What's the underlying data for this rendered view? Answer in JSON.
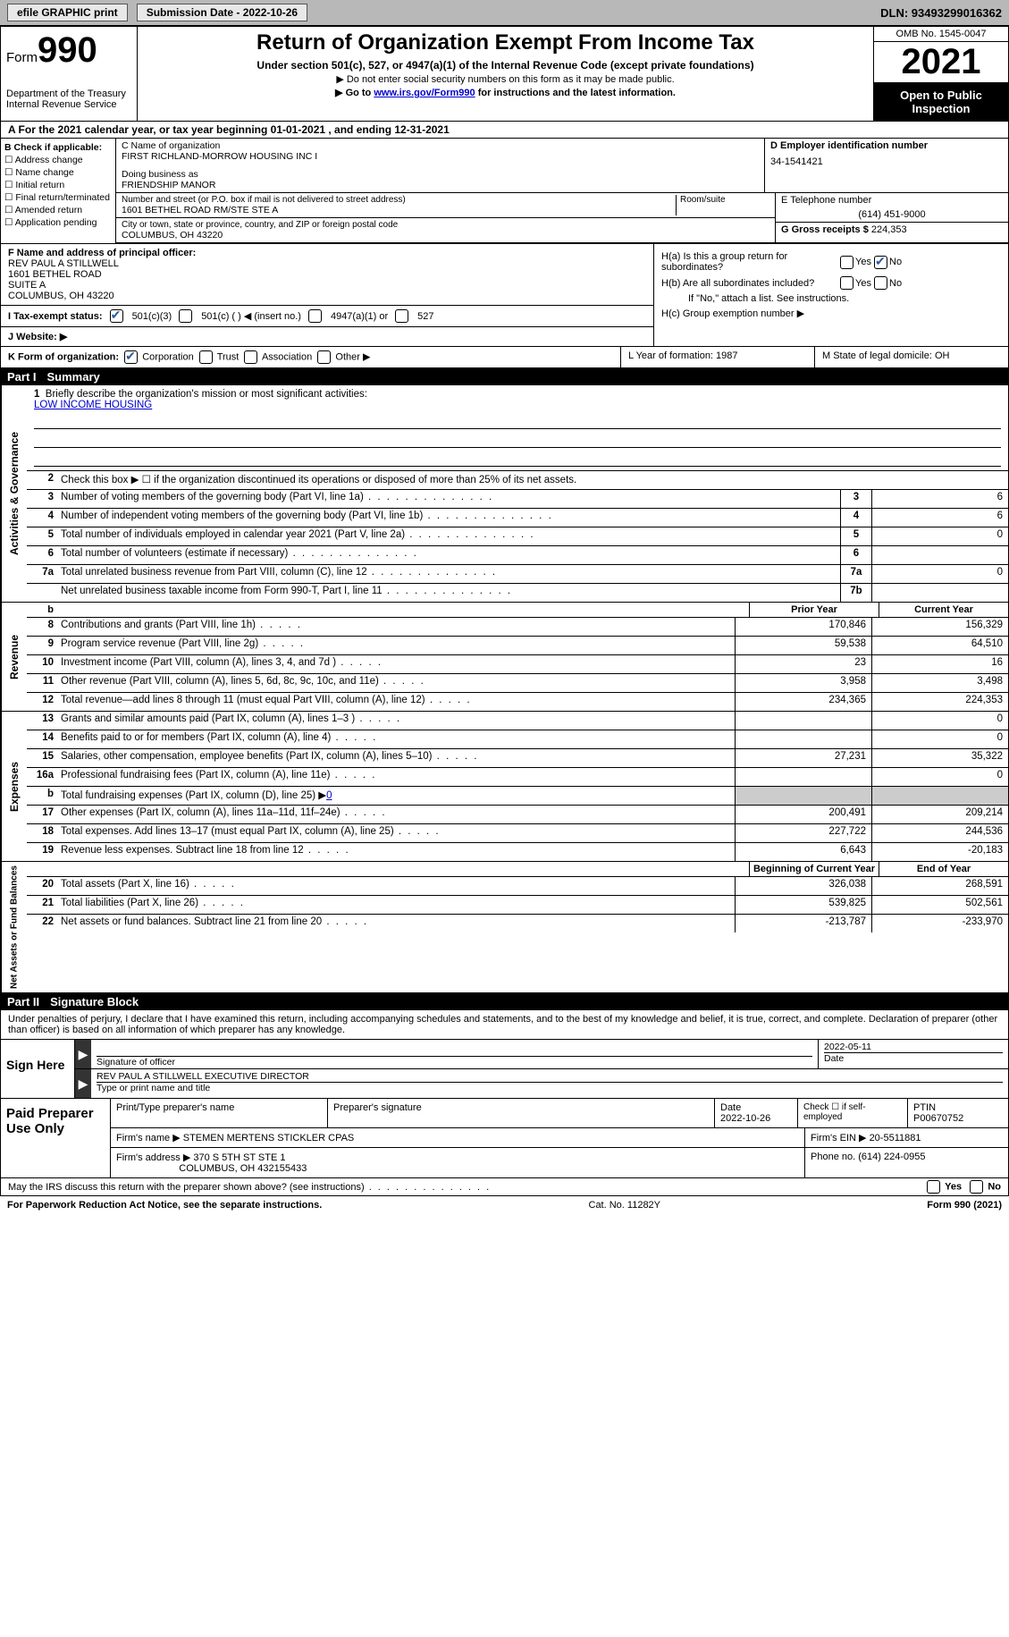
{
  "topbar": {
    "efile": "efile GRAPHIC print",
    "submission": "Submission Date - 2022-10-26",
    "dln": "DLN: 93493299016362"
  },
  "header": {
    "form_prefix": "Form",
    "form_num": "990",
    "dept": "Department of the Treasury",
    "irs": "Internal Revenue Service",
    "title": "Return of Organization Exempt From Income Tax",
    "sub": "Under section 501(c), 527, or 4947(a)(1) of the Internal Revenue Code (except private foundations)",
    "note1": "▶ Do not enter social security numbers on this form as it may be made public.",
    "note2_pre": "▶ Go to ",
    "note2_link": "www.irs.gov/Form990",
    "note2_post": " for instructions and the latest information.",
    "omb": "OMB No. 1545-0047",
    "year": "2021",
    "open": "Open to Public Inspection"
  },
  "row_a": "A For the 2021 calendar year, or tax year beginning 01-01-2021    , and ending 12-31-2021",
  "col_b": {
    "title": "B Check if applicable:",
    "opts": [
      "Address change",
      "Name change",
      "Initial return",
      "Final return/terminated",
      "Amended return",
      "Application pending"
    ]
  },
  "col_c": {
    "label_name": "C Name of organization",
    "name": "FIRST RICHLAND-MORROW HOUSING INC I",
    "dba_label": "Doing business as",
    "dba": "FRIENDSHIP MANOR",
    "street_label": "Number and street (or P.O. box if mail is not delivered to street address)",
    "room_label": "Room/suite",
    "street": "1601 BETHEL ROAD RM/STE STE A",
    "city_label": "City or town, state or province, country, and ZIP or foreign postal code",
    "city": "COLUMBUS, OH  43220"
  },
  "col_d": {
    "label": "D Employer identification number",
    "value": "34-1541421"
  },
  "col_e": {
    "label": "E Telephone number",
    "value": "(614) 451-9000"
  },
  "col_g": {
    "label": "G Gross receipts $",
    "value": "224,353"
  },
  "col_f": {
    "label": "F  Name and address of principal officer:",
    "l1": "REV PAUL A STILLWELL",
    "l2": "1601 BETHEL ROAD",
    "l3": "SUITE A",
    "l4": "COLUMBUS, OH  43220"
  },
  "col_h": {
    "a": "H(a)  Is this a group return for subordinates?",
    "b": "H(b)  Are all subordinates included?",
    "bnote": "If \"No,\" attach a list. See instructions.",
    "c": "H(c)  Group exemption number ▶",
    "yes": "Yes",
    "no": "No"
  },
  "row_i": {
    "label": "I   Tax-exempt status:",
    "o1": "501(c)(3)",
    "o2": "501(c) (  ) ◀ (insert no.)",
    "o3": "4947(a)(1) or",
    "o4": "527"
  },
  "row_j": "J   Website: ▶",
  "row_k": {
    "k": "K Form of organization:",
    "corp": "Corporation",
    "trust": "Trust",
    "assoc": "Association",
    "other": "Other ▶",
    "l": "L Year of formation: 1987",
    "m": "M State of legal domicile: OH"
  },
  "parts": {
    "p1": "Part I",
    "p1t": "Summary",
    "p2": "Part II",
    "p2t": "Signature Block"
  },
  "summary": {
    "s1_label": "Briefly describe the organization's mission or most significant activities:",
    "mission": "LOW INCOME HOUSING",
    "s2": "Check this box ▶ ☐ if the organization discontinued its operations or disposed of more than 25% of its net assets.",
    "rows_gov": [
      {
        "n": "3",
        "label": "Number of voting members of the governing body (Part VI, line 1a)",
        "box": "3",
        "v": "6"
      },
      {
        "n": "4",
        "label": "Number of independent voting members of the governing body (Part VI, line 1b)",
        "box": "4",
        "v": "6"
      },
      {
        "n": "5",
        "label": "Total number of individuals employed in calendar year 2021 (Part V, line 2a)",
        "box": "5",
        "v": "0"
      },
      {
        "n": "6",
        "label": "Total number of volunteers (estimate if necessary)",
        "box": "6",
        "v": ""
      },
      {
        "n": "7a",
        "label": "Total unrelated business revenue from Part VIII, column (C), line 12",
        "box": "7a",
        "v": "0"
      },
      {
        "n": "  ",
        "label": "Net unrelated business taxable income from Form 990-T, Part I, line 11",
        "box": "7b",
        "v": ""
      }
    ],
    "hdr_b": "b",
    "hdr_prior": "Prior Year",
    "hdr_curr": "Current Year",
    "rows_rev": [
      {
        "n": "8",
        "label": "Contributions and grants (Part VIII, line 1h)",
        "p": "170,846",
        "c": "156,329"
      },
      {
        "n": "9",
        "label": "Program service revenue (Part VIII, line 2g)",
        "p": "59,538",
        "c": "64,510"
      },
      {
        "n": "10",
        "label": "Investment income (Part VIII, column (A), lines 3, 4, and 7d )",
        "p": "23",
        "c": "16"
      },
      {
        "n": "11",
        "label": "Other revenue (Part VIII, column (A), lines 5, 6d, 8c, 9c, 10c, and 11e)",
        "p": "3,958",
        "c": "3,498"
      },
      {
        "n": "12",
        "label": "Total revenue—add lines 8 through 11 (must equal Part VIII, column (A), line 12)",
        "p": "234,365",
        "c": "224,353"
      }
    ],
    "rows_exp": [
      {
        "n": "13",
        "label": "Grants and similar amounts paid (Part IX, column (A), lines 1–3 )",
        "p": "",
        "c": "0"
      },
      {
        "n": "14",
        "label": "Benefits paid to or for members (Part IX, column (A), line 4)",
        "p": "",
        "c": "0"
      },
      {
        "n": "15",
        "label": "Salaries, other compensation, employee benefits (Part IX, column (A), lines 5–10)",
        "p": "27,231",
        "c": "35,322"
      },
      {
        "n": "16a",
        "label": "Professional fundraising fees (Part IX, column (A), line 11e)",
        "p": "",
        "c": "0"
      },
      {
        "n": "b",
        "label": "Total fundraising expenses (Part IX, column (D), line 25) ▶",
        "p": "shade",
        "c": "shade",
        "inline": "0"
      },
      {
        "n": "17",
        "label": "Other expenses (Part IX, column (A), lines 11a–11d, 11f–24e)",
        "p": "200,491",
        "c": "209,214"
      },
      {
        "n": "18",
        "label": "Total expenses. Add lines 13–17 (must equal Part IX, column (A), line 25)",
        "p": "227,722",
        "c": "244,536"
      },
      {
        "n": "19",
        "label": "Revenue less expenses. Subtract line 18 from line 12",
        "p": "6,643",
        "c": "-20,183"
      }
    ],
    "hdr_beg": "Beginning of Current Year",
    "hdr_end": "End of Year",
    "rows_net": [
      {
        "n": "20",
        "label": "Total assets (Part X, line 16)",
        "p": "326,038",
        "c": "268,591"
      },
      {
        "n": "21",
        "label": "Total liabilities (Part X, line 26)",
        "p": "539,825",
        "c": "502,561"
      },
      {
        "n": "22",
        "label": "Net assets or fund balances. Subtract line 21 from line 20",
        "p": "-213,787",
        "c": "-233,970"
      }
    ],
    "vtabs": {
      "gov": "Activities & Governance",
      "rev": "Revenue",
      "exp": "Expenses",
      "net": "Net Assets or Fund Balances"
    }
  },
  "sig": {
    "penalties": "Under penalties of perjury, I declare that I have examined this return, including accompanying schedules and statements, and to the best of my knowledge and belief, it is true, correct, and complete. Declaration of preparer (other than officer) is based on all information of which preparer has any knowledge.",
    "sign_here": "Sign Here",
    "sig_officer": "Signature of officer",
    "date": "Date",
    "sig_date": "2022-05-11",
    "name_title": "REV PAUL A STILLWELL  EXECUTIVE DIRECTOR",
    "name_label": "Type or print name and title"
  },
  "prep": {
    "title": "Paid Preparer Use Only",
    "print_name_lbl": "Print/Type preparer's name",
    "sig_lbl": "Preparer's signature",
    "date_lbl": "Date",
    "date": "2022-10-26",
    "check_lbl": "Check ☐  if self-employed",
    "ptin_lbl": "PTIN",
    "ptin": "P00670752",
    "firm_name_lbl": "Firm's name    ▶",
    "firm_name": "STEMEN MERTENS STICKLER CPAS",
    "firm_ein_lbl": "Firm's EIN ▶",
    "firm_ein": "20-5511881",
    "firm_addr_lbl": "Firm's address ▶",
    "firm_addr1": "370 S 5TH ST STE 1",
    "firm_addr2": "COLUMBUS, OH  432155433",
    "phone_lbl": "Phone no.",
    "phone": "(614) 224-0955"
  },
  "footer": {
    "discuss": "May the IRS discuss this return with the preparer shown above? (see instructions)",
    "yes": "Yes",
    "no": "No",
    "paperwork": "For Paperwork Reduction Act Notice, see the separate instructions.",
    "cat": "Cat. No. 11282Y",
    "form": "Form 990 (2021)"
  }
}
